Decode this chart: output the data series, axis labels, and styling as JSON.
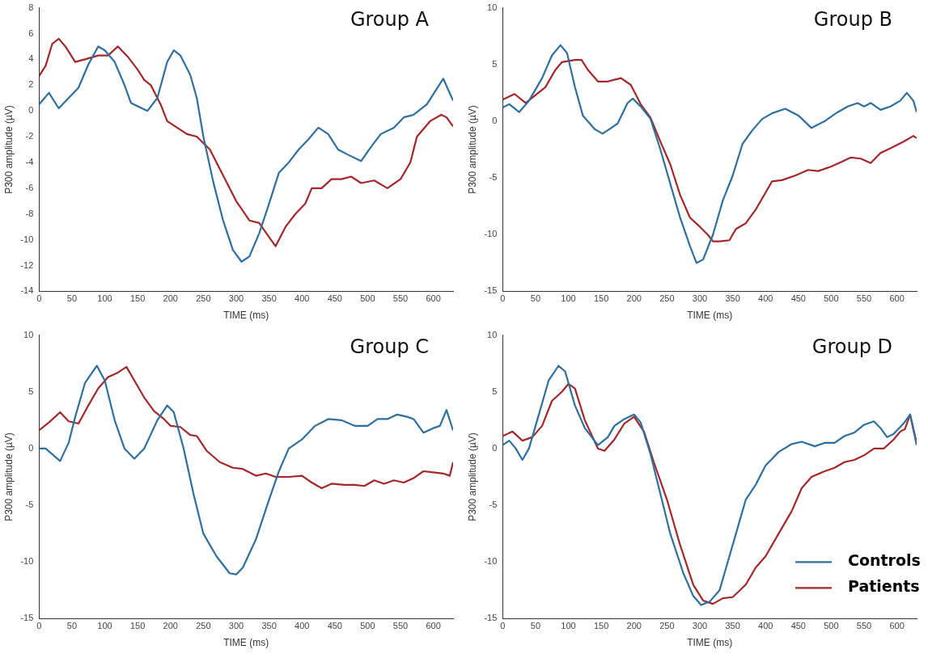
{
  "chart_data": [
    {
      "type": "line",
      "title": "Group A",
      "xlabel": "TIME (ms)",
      "ylabel": "P300 amplitude (µV)",
      "xlim": [
        0,
        630
      ],
      "xticks": [
        0,
        50,
        100,
        150,
        200,
        250,
        300,
        350,
        400,
        450,
        500,
        550,
        600
      ],
      "ylim": [
        -14,
        8
      ],
      "yticks": [
        -14,
        -12,
        -10,
        -8,
        -6,
        -4,
        -2,
        0,
        2,
        4,
        6,
        8
      ],
      "grid": false,
      "marker": "none",
      "series": [
        {
          "color": "#2f6f9f",
          "x": [
            0,
            15,
            30,
            45,
            60,
            75,
            90,
            100,
            115,
            130,
            140,
            165,
            180,
            195,
            205,
            215,
            230,
            240,
            250,
            265,
            280,
            295,
            308,
            320,
            335,
            350,
            365,
            380,
            395,
            410,
            425,
            440,
            455,
            470,
            490,
            505,
            520,
            540,
            555,
            570,
            590,
            605,
            615,
            630
          ],
          "values": [
            0.5,
            1.4,
            0.2,
            1.0,
            1.8,
            3.6,
            5.0,
            4.7,
            3.8,
            2.0,
            0.6,
            0.0,
            1.0,
            3.8,
            4.7,
            4.3,
            2.8,
            1.0,
            -2.0,
            -5.5,
            -8.5,
            -10.8,
            -11.7,
            -11.3,
            -9.5,
            -7.2,
            -4.8,
            -4.0,
            -3.0,
            -2.2,
            -1.3,
            -1.8,
            -3.0,
            -3.4,
            -3.9,
            -2.8,
            -1.8,
            -1.3,
            -0.5,
            -0.3,
            0.5,
            1.7,
            2.5,
            0.8
          ]
        },
        {
          "color": "#a3272b",
          "x": [
            0,
            10,
            20,
            30,
            40,
            55,
            70,
            90,
            105,
            120,
            135,
            150,
            160,
            170,
            185,
            195,
            210,
            225,
            240,
            260,
            280,
            300,
            320,
            335,
            350,
            360,
            375,
            390,
            405,
            415,
            430,
            445,
            460,
            475,
            490,
            510,
            530,
            550,
            565,
            575,
            595,
            612,
            620,
            630
          ],
          "values": [
            2.7,
            3.5,
            5.2,
            5.6,
            5.0,
            3.8,
            4.0,
            4.3,
            4.3,
            5.0,
            4.2,
            3.2,
            2.4,
            2.0,
            0.5,
            -0.8,
            -1.3,
            -1.8,
            -2.0,
            -3.0,
            -5.0,
            -7.0,
            -8.5,
            -8.7,
            -9.8,
            -10.5,
            -9.0,
            -8.0,
            -7.2,
            -6.0,
            -6.0,
            -5.3,
            -5.3,
            -5.1,
            -5.6,
            -5.4,
            -6.0,
            -5.3,
            -4.0,
            -2.0,
            -0.8,
            -0.3,
            -0.5,
            -1.2
          ]
        }
      ]
    },
    {
      "type": "line",
      "title": "Group B",
      "xlabel": "TIME (ms)",
      "ylabel": "P300 amplitude (µV)",
      "xlim": [
        0,
        630
      ],
      "xticks": [
        0,
        50,
        100,
        150,
        200,
        250,
        300,
        350,
        400,
        450,
        500,
        550,
        600
      ],
      "ylim": [
        -15,
        10
      ],
      "yticks": [
        -15,
        -10,
        -5,
        0,
        5,
        10
      ],
      "grid": false,
      "marker": "none",
      "series": [
        {
          "color": "#2f6f9f",
          "x": [
            0,
            10,
            25,
            40,
            60,
            75,
            88,
            98,
            110,
            122,
            140,
            152,
            165,
            175,
            190,
            198,
            210,
            225,
            240,
            255,
            270,
            285,
            295,
            305,
            320,
            335,
            350,
            365,
            380,
            395,
            410,
            430,
            450,
            470,
            490,
            510,
            525,
            540,
            550,
            560,
            575,
            590,
            605,
            615,
            625,
            630
          ],
          "values": [
            1.2,
            1.5,
            0.8,
            1.8,
            3.8,
            5.8,
            6.7,
            6.0,
            3.0,
            0.5,
            -0.7,
            -1.1,
            -0.6,
            -0.2,
            1.6,
            2.0,
            1.3,
            0.2,
            -2.5,
            -5.5,
            -8.5,
            -11.0,
            -12.5,
            -12.2,
            -10.0,
            -7.0,
            -4.8,
            -2.0,
            -0.8,
            0.2,
            0.7,
            1.1,
            0.5,
            -0.6,
            0.0,
            0.8,
            1.3,
            1.6,
            1.3,
            1.6,
            1.0,
            1.3,
            1.8,
            2.5,
            1.8,
            0.8
          ]
        },
        {
          "color": "#a3272b",
          "x": [
            0,
            18,
            35,
            50,
            65,
            80,
            90,
            110,
            120,
            130,
            145,
            160,
            180,
            195,
            210,
            225,
            240,
            255,
            270,
            285,
            300,
            312,
            320,
            330,
            345,
            355,
            370,
            385,
            400,
            410,
            425,
            445,
            465,
            480,
            500,
            515,
            530,
            545,
            560,
            575,
            590,
            610,
            625,
            630
          ],
          "values": [
            1.9,
            2.4,
            1.6,
            2.3,
            3.0,
            4.5,
            5.2,
            5.4,
            5.4,
            4.5,
            3.5,
            3.5,
            3.8,
            3.2,
            1.5,
            0.3,
            -1.8,
            -3.8,
            -6.5,
            -8.5,
            -9.3,
            -10.0,
            -10.6,
            -10.6,
            -10.5,
            -9.5,
            -9.0,
            -7.8,
            -6.3,
            -5.3,
            -5.2,
            -4.8,
            -4.3,
            -4.4,
            -4.0,
            -3.6,
            -3.2,
            -3.3,
            -3.7,
            -2.8,
            -2.4,
            -1.8,
            -1.3,
            -1.5
          ]
        }
      ]
    },
    {
      "type": "line",
      "title": "Group C",
      "xlabel": "TIME (ms)",
      "ylabel": "P300 amplitude (µV)",
      "xlim": [
        0,
        630
      ],
      "xticks": [
        0,
        50,
        100,
        150,
        200,
        250,
        300,
        350,
        400,
        450,
        500,
        550,
        600
      ],
      "ylim": [
        -15,
        10
      ],
      "yticks": [
        -15,
        -10,
        -5,
        0,
        5,
        10
      ],
      "grid": false,
      "marker": "none",
      "series": [
        {
          "color": "#2f6f9f",
          "x": [
            0,
            10,
            20,
            32,
            45,
            55,
            70,
            88,
            100,
            115,
            130,
            145,
            160,
            180,
            195,
            205,
            220,
            235,
            250,
            270,
            290,
            300,
            310,
            330,
            350,
            365,
            380,
            400,
            420,
            440,
            460,
            480,
            500,
            515,
            530,
            545,
            560,
            570,
            585,
            600,
            610,
            620,
            630
          ],
          "values": [
            0.0,
            0.0,
            -0.5,
            -1.1,
            0.5,
            2.8,
            5.8,
            7.3,
            6.0,
            2.5,
            0.0,
            -0.9,
            0.0,
            2.5,
            3.8,
            3.2,
            0.0,
            -4.0,
            -7.5,
            -9.5,
            -11.0,
            -11.1,
            -10.5,
            -8.0,
            -4.5,
            -2.0,
            0.0,
            0.8,
            2.0,
            2.6,
            2.5,
            2.0,
            2.0,
            2.6,
            2.6,
            3.0,
            2.8,
            2.6,
            1.4,
            1.8,
            2.0,
            3.4,
            1.6
          ]
        },
        {
          "color": "#a3272b",
          "x": [
            0,
            15,
            32,
            45,
            60,
            75,
            90,
            105,
            120,
            133,
            145,
            160,
            175,
            190,
            200,
            215,
            230,
            240,
            255,
            275,
            295,
            310,
            330,
            345,
            360,
            380,
            400,
            415,
            430,
            445,
            465,
            480,
            495,
            510,
            525,
            540,
            555,
            570,
            585,
            600,
            615,
            625,
            630
          ],
          "values": [
            1.6,
            2.3,
            3.2,
            2.4,
            2.2,
            3.8,
            5.3,
            6.3,
            6.7,
            7.2,
            6.0,
            4.5,
            3.3,
            2.6,
            2.0,
            1.9,
            1.2,
            1.1,
            -0.2,
            -1.2,
            -1.7,
            -1.8,
            -2.4,
            -2.2,
            -2.5,
            -2.5,
            -2.4,
            -3.0,
            -3.5,
            -3.1,
            -3.2,
            -3.2,
            -3.3,
            -2.8,
            -3.1,
            -2.8,
            -3.0,
            -2.6,
            -2.0,
            -2.1,
            -2.2,
            -2.4,
            -1.2
          ]
        }
      ]
    },
    {
      "type": "line",
      "title": "Group D",
      "xlabel": "TIME (ms)",
      "ylabel": "P300 amplitude (µV)",
      "xlim": [
        0,
        630
      ],
      "xticks": [
        0,
        50,
        100,
        150,
        200,
        250,
        300,
        350,
        400,
        450,
        500,
        550,
        600
      ],
      "ylim": [
        -15,
        10
      ],
      "yticks": [
        -15,
        -10,
        -5,
        0,
        5,
        10
      ],
      "grid": false,
      "marker": "none",
      "legend": "bottom right",
      "series": [
        {
          "name": "Controls",
          "color": "#2f6f9f",
          "x": [
            0,
            10,
            20,
            30,
            40,
            55,
            70,
            85,
            95,
            110,
            125,
            145,
            160,
            170,
            185,
            200,
            210,
            225,
            240,
            255,
            275,
            290,
            302,
            315,
            330,
            345,
            360,
            370,
            385,
            400,
            420,
            440,
            455,
            475,
            490,
            505,
            520,
            535,
            550,
            565,
            575,
            585,
            595,
            610,
            620,
            630
          ],
          "values": [
            0.3,
            0.7,
            0.0,
            -1.0,
            0.0,
            3.0,
            6.0,
            7.3,
            6.8,
            3.8,
            1.8,
            0.3,
            1.0,
            2.0,
            2.6,
            3.0,
            2.3,
            -0.5,
            -4.0,
            -7.5,
            -11.0,
            -13.0,
            -13.8,
            -13.5,
            -12.5,
            -9.5,
            -6.5,
            -4.5,
            -3.2,
            -1.5,
            -0.3,
            0.4,
            0.6,
            0.2,
            0.5,
            0.5,
            1.1,
            1.4,
            2.1,
            2.4,
            1.8,
            1.0,
            1.3,
            2.2,
            3.0,
            0.3
          ]
        },
        {
          "name": "Patients",
          "color": "#a3272b",
          "x": [
            0,
            15,
            30,
            45,
            60,
            75,
            90,
            100,
            110,
            125,
            145,
            155,
            170,
            185,
            200,
            215,
            230,
            250,
            270,
            290,
            305,
            320,
            335,
            350,
            370,
            385,
            400,
            420,
            440,
            455,
            470,
            490,
            505,
            520,
            535,
            550,
            565,
            580,
            595,
            605,
            612,
            620,
            630
          ],
          "values": [
            1.1,
            1.5,
            0.7,
            1.0,
            2.0,
            4.2,
            5.0,
            5.7,
            5.3,
            2.5,
            0.0,
            -0.2,
            0.8,
            2.2,
            2.8,
            1.5,
            -1.2,
            -4.5,
            -8.5,
            -12.0,
            -13.4,
            -13.7,
            -13.2,
            -13.1,
            -12.0,
            -10.5,
            -9.5,
            -7.5,
            -5.5,
            -3.5,
            -2.5,
            -2.0,
            -1.7,
            -1.2,
            -1.0,
            -0.6,
            0.0,
            0.0,
            0.8,
            1.5,
            1.7,
            3.0,
            0.5
          ]
        }
      ]
    }
  ]
}
